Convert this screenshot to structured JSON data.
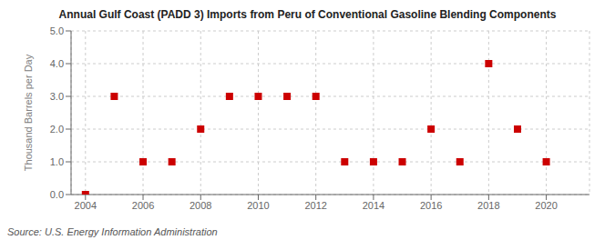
{
  "chart_data": {
    "type": "scatter",
    "title": "Annual Gulf Coast (PADD 3) Imports from Peru of Conventional Gasoline Blending Components",
    "ylabel": "Thousand Barrels per Day",
    "source": "Source: U.S. Energy Information Administration",
    "x": [
      2004,
      2005,
      2006,
      2007,
      2008,
      2009,
      2010,
      2011,
      2012,
      2013,
      2014,
      2015,
      2016,
      2017,
      2018,
      2019,
      2020
    ],
    "values": [
      0,
      3,
      1,
      1,
      2,
      3,
      3,
      3,
      3,
      1,
      1,
      1,
      2,
      1,
      4,
      2,
      1
    ],
    "color": "#cc0000",
    "marker": "square",
    "xlim": [
      2003.5,
      2021.5
    ],
    "ylim": [
      0,
      5.0
    ],
    "xticks": [
      2004,
      2006,
      2008,
      2010,
      2012,
      2014,
      2016,
      2018,
      2020
    ],
    "yticks": [
      {
        "value": 0,
        "label": "0.0"
      },
      {
        "value": 1,
        "label": "1.0"
      },
      {
        "value": 2,
        "label": "2.0"
      },
      {
        "value": 3,
        "label": "3.0"
      },
      {
        "value": 4,
        "label": "4.0"
      },
      {
        "value": 5,
        "label": "5.0"
      }
    ],
    "grid": true
  }
}
